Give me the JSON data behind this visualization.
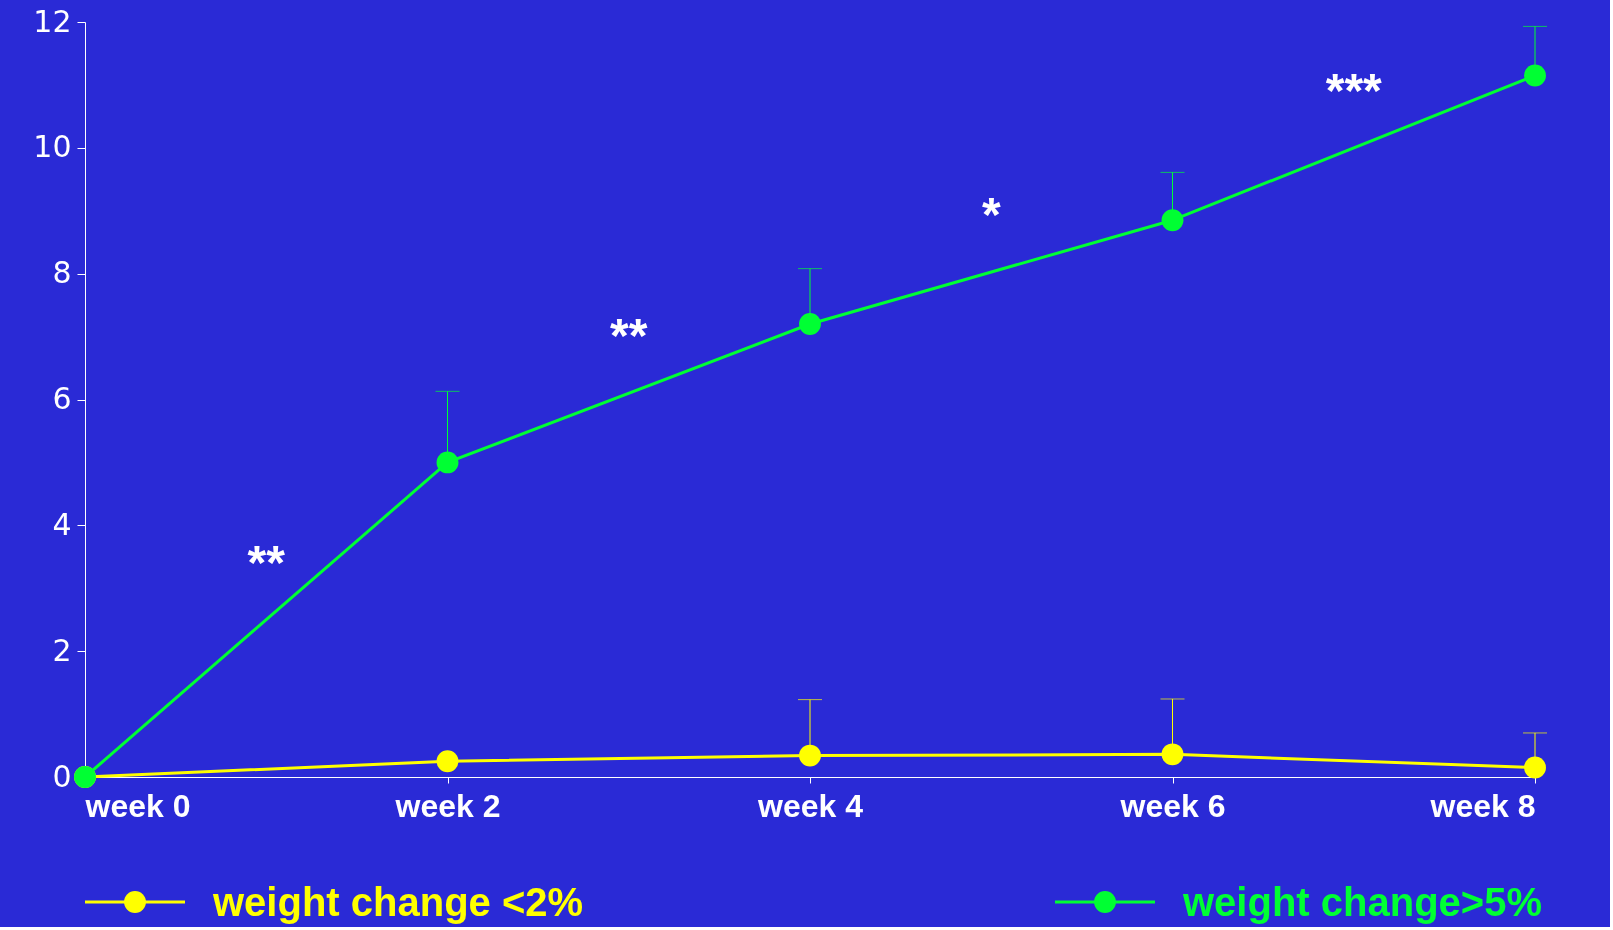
{
  "chart_data": {
    "type": "line",
    "categories": [
      "week 0",
      "week 2",
      "week 4",
      "week 6",
      "week 8"
    ],
    "series": [
      {
        "name": "weight change <2%",
        "color": "#ffff00",
        "values": [
          0,
          0.25,
          0.34,
          0.36,
          0.15
        ],
        "errors": [
          null,
          null,
          [
            0.34,
            1.23
          ],
          [
            0.36,
            1.24
          ],
          [
            0.15,
            0.7
          ]
        ]
      },
      {
        "name": "weight change>5%",
        "color": "#00ff33",
        "values": [
          0,
          5.0,
          7.2,
          8.85,
          11.15
        ],
        "errors": [
          null,
          [
            5.0,
            6.13
          ],
          [
            7.2,
            8.08
          ],
          [
            8.85,
            9.61
          ],
          [
            11.15,
            11.93
          ]
        ]
      }
    ],
    "annotations": [
      "**",
      "**",
      "*",
      "***"
    ],
    "ylim": [
      0,
      12
    ],
    "yticks": [
      0,
      2,
      4,
      6,
      8,
      10,
      12
    ],
    "marker": "circle",
    "line_style": "solid",
    "grid": false,
    "legend": "bottom"
  }
}
